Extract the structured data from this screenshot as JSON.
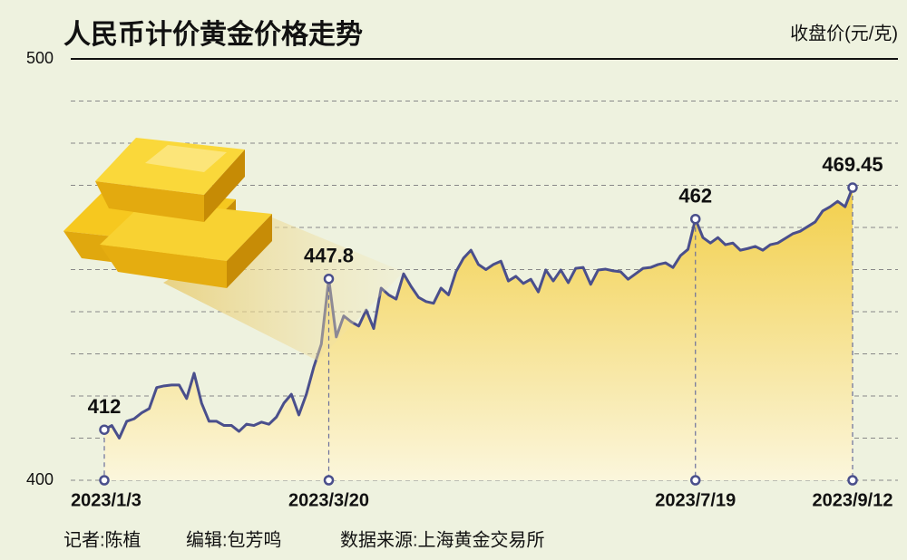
{
  "chart_data": {
    "type": "line",
    "title": "人民币计价黄金价格走势",
    "y_label": "收盘价(元/克)",
    "categories": [
      "2023/1/3",
      null,
      null,
      null,
      null,
      null,
      null,
      null,
      null,
      null,
      null,
      null,
      null,
      null,
      null,
      null,
      null,
      null,
      null,
      null,
      null,
      null,
      null,
      null,
      null,
      null,
      null,
      null,
      null,
      null,
      "2023/3/20",
      null,
      null,
      null,
      null,
      null,
      null,
      null,
      null,
      null,
      null,
      null,
      null,
      null,
      null,
      null,
      null,
      null,
      null,
      null,
      null,
      null,
      null,
      null,
      null,
      null,
      null,
      null,
      null,
      null,
      null,
      null,
      null,
      null,
      null,
      null,
      null,
      null,
      null,
      null,
      null,
      null,
      null,
      null,
      null,
      null,
      null,
      null,
      null,
      "2023/7/19",
      null,
      null,
      null,
      null,
      null,
      null,
      null,
      null,
      null,
      null,
      null,
      null,
      null,
      null,
      null,
      null,
      null,
      null,
      null,
      null,
      "2023/9/12"
    ],
    "values": [
      412,
      413,
      410,
      414,
      414.6,
      416,
      417,
      422,
      422.4,
      422.6,
      422.6,
      419.4,
      425.4,
      418.3,
      414,
      414,
      413,
      413,
      411.6,
      413.3,
      413,
      413.8,
      413.3,
      415,
      418.3,
      420.4,
      415.5,
      420.4,
      426.9,
      432.3,
      447.8,
      434,
      439,
      437.6,
      436.6,
      440.4,
      436,
      445.6,
      444,
      443,
      449,
      446,
      443.4,
      442.4,
      442,
      445.6,
      444,
      449.5,
      452.7,
      454.6,
      451.2,
      450,
      451.2,
      452,
      447.3,
      448.4,
      446.7,
      447.7,
      444.7,
      449.9,
      447.3,
      449.9,
      446.9,
      450.3,
      450.5,
      446.5,
      449.9,
      450.1,
      449.7,
      449.5,
      447.7,
      449,
      450.3,
      450.5,
      451.2,
      451.6,
      450.5,
      453.3,
      454.8,
      462,
      457.6,
      456.3,
      457.6,
      455.9,
      456.3,
      454.6,
      455,
      455.5,
      454.6,
      455.9,
      456.3,
      457.4,
      458.5,
      459.1,
      460.2,
      461.3,
      463.9,
      464.9,
      466.2,
      464.9,
      469.45
    ],
    "value_labels": [
      "412",
      null,
      null,
      null,
      null,
      null,
      null,
      null,
      null,
      null,
      null,
      null,
      null,
      null,
      null,
      null,
      null,
      null,
      null,
      null,
      null,
      null,
      null,
      null,
      null,
      null,
      null,
      null,
      null,
      null,
      "447.8",
      null,
      null,
      null,
      null,
      null,
      null,
      null,
      null,
      null,
      null,
      null,
      null,
      null,
      null,
      null,
      null,
      null,
      null,
      null,
      null,
      null,
      null,
      null,
      null,
      null,
      null,
      null,
      null,
      null,
      null,
      null,
      null,
      null,
      null,
      null,
      null,
      null,
      null,
      null,
      null,
      null,
      null,
      null,
      null,
      null,
      null,
      null,
      null,
      "462",
      null,
      null,
      null,
      null,
      null,
      null,
      null,
      null,
      null,
      null,
      null,
      null,
      null,
      null,
      null,
      null,
      null,
      null,
      null,
      null,
      "469.45"
    ],
    "color": "#4a4f8c",
    "ylim": [
      400,
      500
    ],
    "yticks": [
      400,
      500
    ],
    "minor_yticks": [
      410,
      420,
      430,
      440,
      450,
      460,
      470,
      480,
      490
    ],
    "grid": true
  },
  "footer": {
    "reporter": "记者:陈植",
    "editor": "编辑:包芳鸣",
    "source": "数据来源:上海黄金交易所"
  }
}
